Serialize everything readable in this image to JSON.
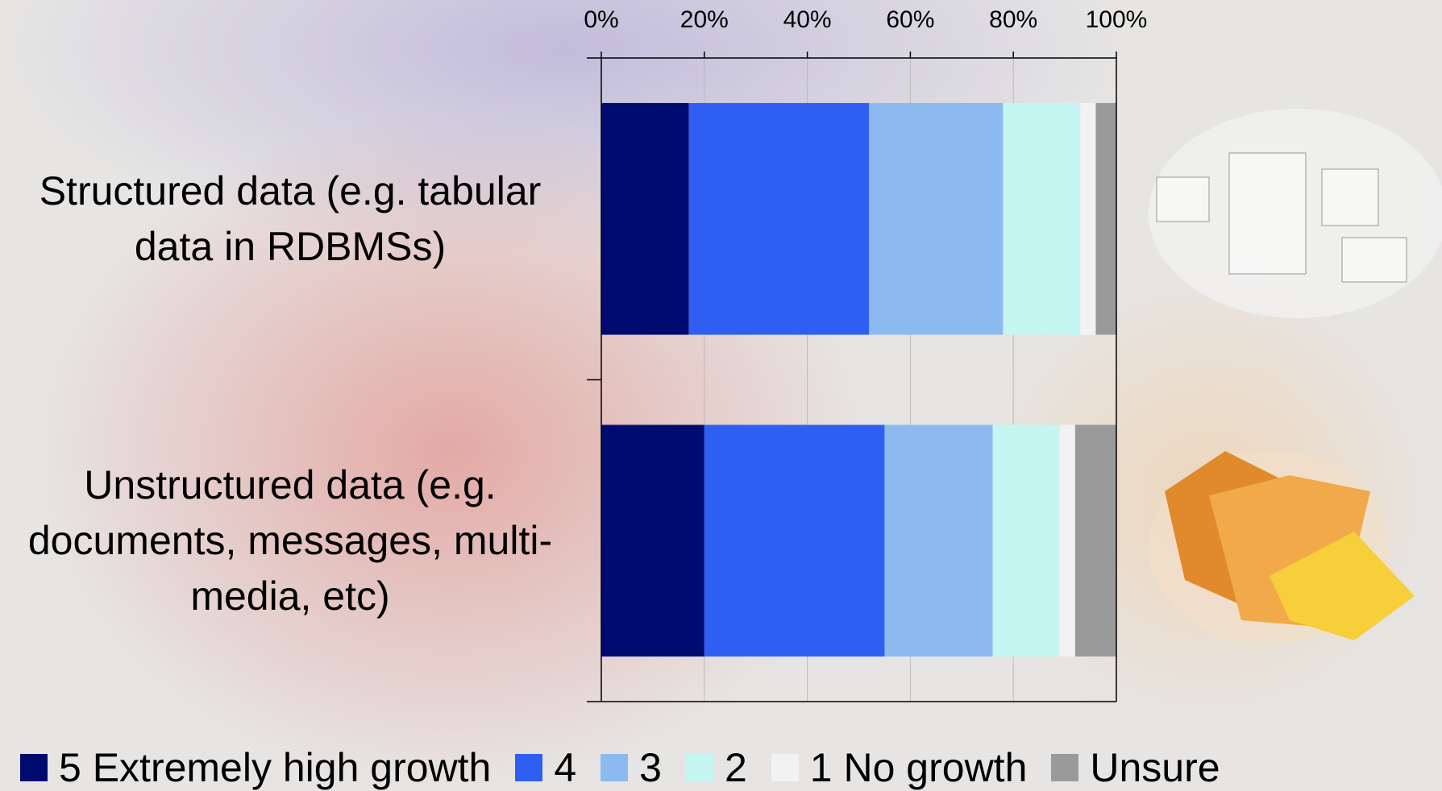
{
  "chart_data": {
    "type": "stacked-bar-horizontal",
    "categories": [
      "Structured data (e.g. tabular data in RDBMSs)",
      "Unstructured data (e.g. documents, messages, multi-media, etc)"
    ],
    "series": [
      {
        "name": "5 Extremely high growth",
        "color": "#000b70",
        "values": [
          17,
          20
        ]
      },
      {
        "name": "4",
        "color": "#2f5ff2",
        "values": [
          35,
          35
        ]
      },
      {
        "name": "3",
        "color": "#8cbaf0",
        "values": [
          26,
          21
        ]
      },
      {
        "name": "2",
        "color": "#c6f6f2",
        "values": [
          15,
          13
        ]
      },
      {
        "name": "1 No growth",
        "color": "#f2f2f2",
        "values": [
          3,
          3
        ]
      },
      {
        "name": "Unsure",
        "color": "#9a9a9a",
        "values": [
          4,
          8
        ]
      }
    ],
    "xlim": [
      0,
      100
    ],
    "xticks": [
      {
        "value": 0,
        "label": "0%"
      },
      {
        "value": 20,
        "label": "20%"
      },
      {
        "value": 40,
        "label": "40%"
      },
      {
        "value": 60,
        "label": "60%"
      },
      {
        "value": 80,
        "label": "80%"
      },
      {
        "value": 100,
        "label": "100%"
      }
    ],
    "grid": true
  }
}
